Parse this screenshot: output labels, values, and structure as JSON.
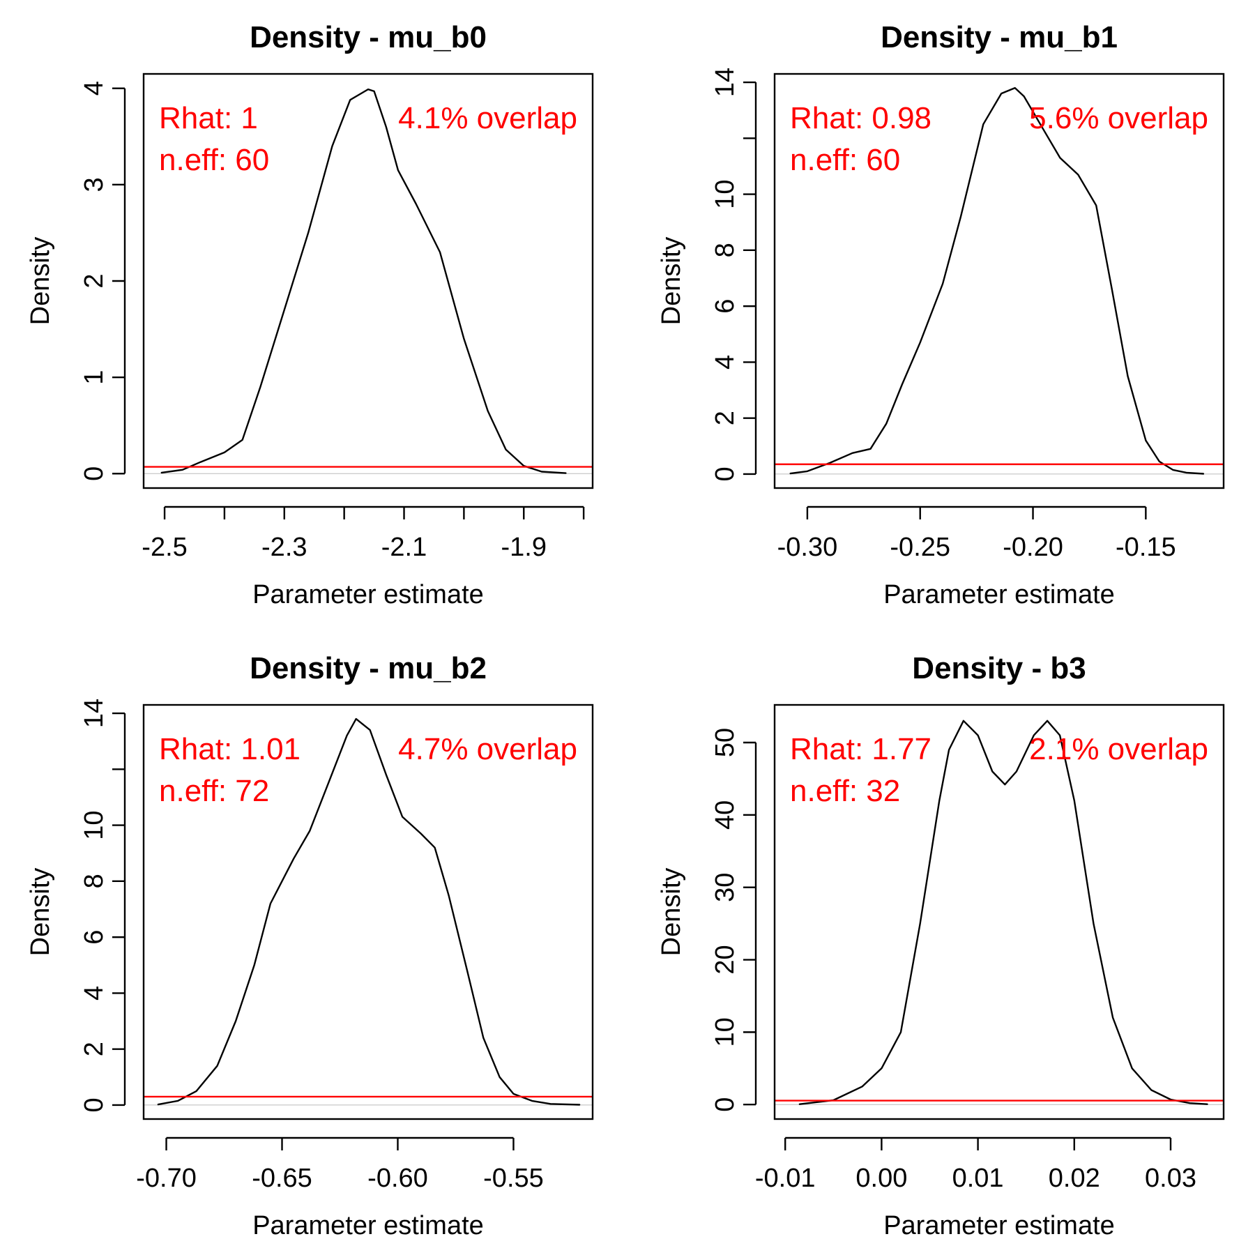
{
  "chart_data": [
    {
      "type": "line",
      "title": "Density - mu_b0",
      "xlabel": "Parameter estimate",
      "ylabel": "Density",
      "xlim": [
        -2.535,
        -1.785
      ],
      "ylim": [
        -0.15,
        4.15
      ],
      "xticks": [
        -2.5,
        -2.4,
        -2.3,
        -2.2,
        -2.1,
        -2.0,
        -1.9,
        -1.8
      ],
      "xtick_labels": [
        "-2.5",
        "",
        "-2.3",
        "",
        "-2.1",
        "",
        "-1.9",
        ""
      ],
      "yticks": [
        0,
        1,
        2,
        3,
        4
      ],
      "ytick_labels": [
        "0",
        "1",
        "2",
        "3",
        "4"
      ],
      "series": [
        {
          "color": "#000000",
          "x": [
            -2.505,
            -2.47,
            -2.44,
            -2.4,
            -2.37,
            -2.34,
            -2.3,
            -2.26,
            -2.22,
            -2.19,
            -2.16,
            -2.15,
            -2.13,
            -2.11,
            -2.08,
            -2.04,
            -2.0,
            -1.96,
            -1.93,
            -1.9,
            -1.87,
            -1.83
          ],
          "y": [
            0.01,
            0.04,
            0.12,
            0.22,
            0.35,
            0.9,
            1.7,
            2.5,
            3.4,
            3.88,
            3.99,
            3.97,
            3.6,
            3.15,
            2.8,
            2.3,
            1.4,
            0.65,
            0.25,
            0.08,
            0.02,
            0.005
          ]
        }
      ],
      "hline": {
        "y": 0.07,
        "color": "#ff0000"
      },
      "annotations": [
        "Rhat: 1",
        "n.eff: 60",
        "4.1% overlap"
      ]
    },
    {
      "type": "line",
      "title": "Density - mu_b1",
      "xlabel": "Parameter estimate",
      "ylabel": "Density",
      "xlim": [
        -0.3145,
        -0.1155
      ],
      "ylim": [
        -0.5,
        14.3
      ],
      "xticks": [
        -0.3,
        -0.25,
        -0.2,
        -0.15
      ],
      "xtick_labels": [
        "-0.30",
        "-0.25",
        "-0.20",
        "-0.15"
      ],
      "yticks": [
        0,
        2,
        4,
        6,
        8,
        10,
        12,
        14
      ],
      "ytick_labels": [
        "0",
        "2",
        "4",
        "6",
        "8",
        "10",
        "",
        "14"
      ],
      "series": [
        {
          "color": "#000000",
          "x": [
            -0.3075,
            -0.3,
            -0.29,
            -0.28,
            -0.272,
            -0.265,
            -0.258,
            -0.25,
            -0.24,
            -0.232,
            -0.222,
            -0.214,
            -0.208,
            -0.204,
            -0.196,
            -0.188,
            -0.18,
            -0.172,
            -0.165,
            -0.158,
            -0.15,
            -0.144,
            -0.138,
            -0.132,
            -0.1245
          ],
          "y": [
            0.02,
            0.1,
            0.4,
            0.75,
            0.9,
            1.8,
            3.2,
            4.7,
            6.8,
            9.2,
            12.5,
            13.6,
            13.8,
            13.5,
            12.4,
            11.3,
            10.7,
            9.6,
            6.6,
            3.5,
            1.2,
            0.45,
            0.15,
            0.05,
            0.01
          ]
        }
      ],
      "hline": {
        "y": 0.35,
        "color": "#ff0000"
      },
      "annotations": [
        "Rhat: 0.98",
        "n.eff: 60",
        "5.6% overlap"
      ]
    },
    {
      "type": "line",
      "title": "Density - mu_b2",
      "xlabel": "Parameter estimate",
      "ylabel": "Density",
      "xlim": [
        -0.7098,
        -0.5158
      ],
      "ylim": [
        -0.5,
        14.3
      ],
      "xticks": [
        -0.7,
        -0.65,
        -0.6,
        -0.55
      ],
      "xtick_labels": [
        "-0.70",
        "-0.65",
        "-0.60",
        "-0.55"
      ],
      "yticks": [
        0,
        2,
        4,
        6,
        8,
        10,
        12,
        14
      ],
      "ytick_labels": [
        "0",
        "2",
        "4",
        "6",
        "8",
        "10",
        "",
        "14"
      ],
      "series": [
        {
          "color": "#000000",
          "x": [
            -0.7035,
            -0.695,
            -0.687,
            -0.678,
            -0.67,
            -0.662,
            -0.655,
            -0.645,
            -0.638,
            -0.63,
            -0.622,
            -0.618,
            -0.612,
            -0.605,
            -0.598,
            -0.59,
            -0.584,
            -0.578,
            -0.57,
            -0.563,
            -0.556,
            -0.55,
            -0.542,
            -0.534,
            -0.5215
          ],
          "y": [
            0.02,
            0.15,
            0.5,
            1.4,
            3.0,
            5.0,
            7.2,
            8.8,
            9.8,
            11.5,
            13.2,
            13.8,
            13.4,
            11.8,
            10.3,
            9.7,
            9.2,
            7.5,
            4.8,
            2.4,
            1.0,
            0.4,
            0.15,
            0.04,
            0.01
          ]
        }
      ],
      "hline": {
        "y": 0.3,
        "color": "#ff0000"
      },
      "annotations": [
        "Rhat: 1.01",
        "n.eff: 72",
        "4.7% overlap"
      ]
    },
    {
      "type": "line",
      "title": "Density - b3",
      "xlabel": "Parameter estimate",
      "ylabel": "Density",
      "xlim": [
        -0.0111,
        0.0355
      ],
      "ylim": [
        -2.0,
        55.2
      ],
      "xticks": [
        -0.01,
        0.0,
        0.01,
        0.02,
        0.03
      ],
      "xtick_labels": [
        "-0.01",
        "0.00",
        "0.01",
        "0.02",
        "0.03"
      ],
      "yticks": [
        0,
        10,
        20,
        30,
        40,
        50
      ],
      "ytick_labels": [
        "0",
        "10",
        "20",
        "30",
        "40",
        "50"
      ],
      "series": [
        {
          "color": "#000000",
          "x": [
            -0.0085,
            -0.005,
            -0.002,
            0.0,
            0.002,
            0.004,
            0.006,
            0.007,
            0.0085,
            0.01,
            0.0115,
            0.0128,
            0.014,
            0.0158,
            0.0172,
            0.0185,
            0.02,
            0.022,
            0.024,
            0.026,
            0.028,
            0.03,
            0.032,
            0.0338
          ],
          "y": [
            0.05,
            0.6,
            2.5,
            5.0,
            10.0,
            25.0,
            42.0,
            49.0,
            53.0,
            51.0,
            46.0,
            44.2,
            46.0,
            51.0,
            53.0,
            51.0,
            42.0,
            25.0,
            12.0,
            5.0,
            2.0,
            0.7,
            0.2,
            0.05
          ]
        }
      ],
      "hline": {
        "y": 0.55,
        "color": "#ff0000"
      },
      "annotations": [
        "Rhat: 1.77",
        "n.eff: 32",
        "2.1% overlap"
      ]
    }
  ]
}
